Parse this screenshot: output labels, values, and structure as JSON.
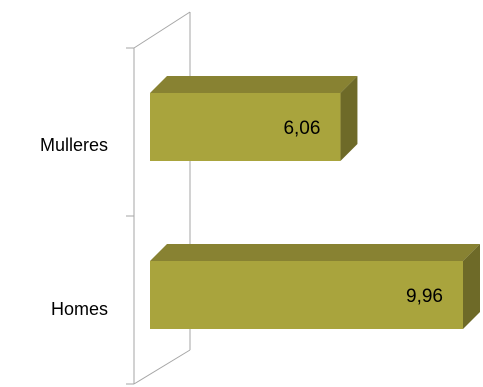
{
  "chart_data": {
    "type": "bar",
    "orientation": "horizontal",
    "style": "3d",
    "categories": [
      "Mulleres",
      "Homes"
    ],
    "values": [
      6.06,
      9.96
    ],
    "value_labels": [
      "6,06",
      "9,96"
    ],
    "xlim": [
      0,
      10
    ],
    "grid": false,
    "legend": "none",
    "bar_color": "#A9A43D",
    "bar_top_color": "#888232",
    "bar_side_color": "#6E6A28"
  }
}
